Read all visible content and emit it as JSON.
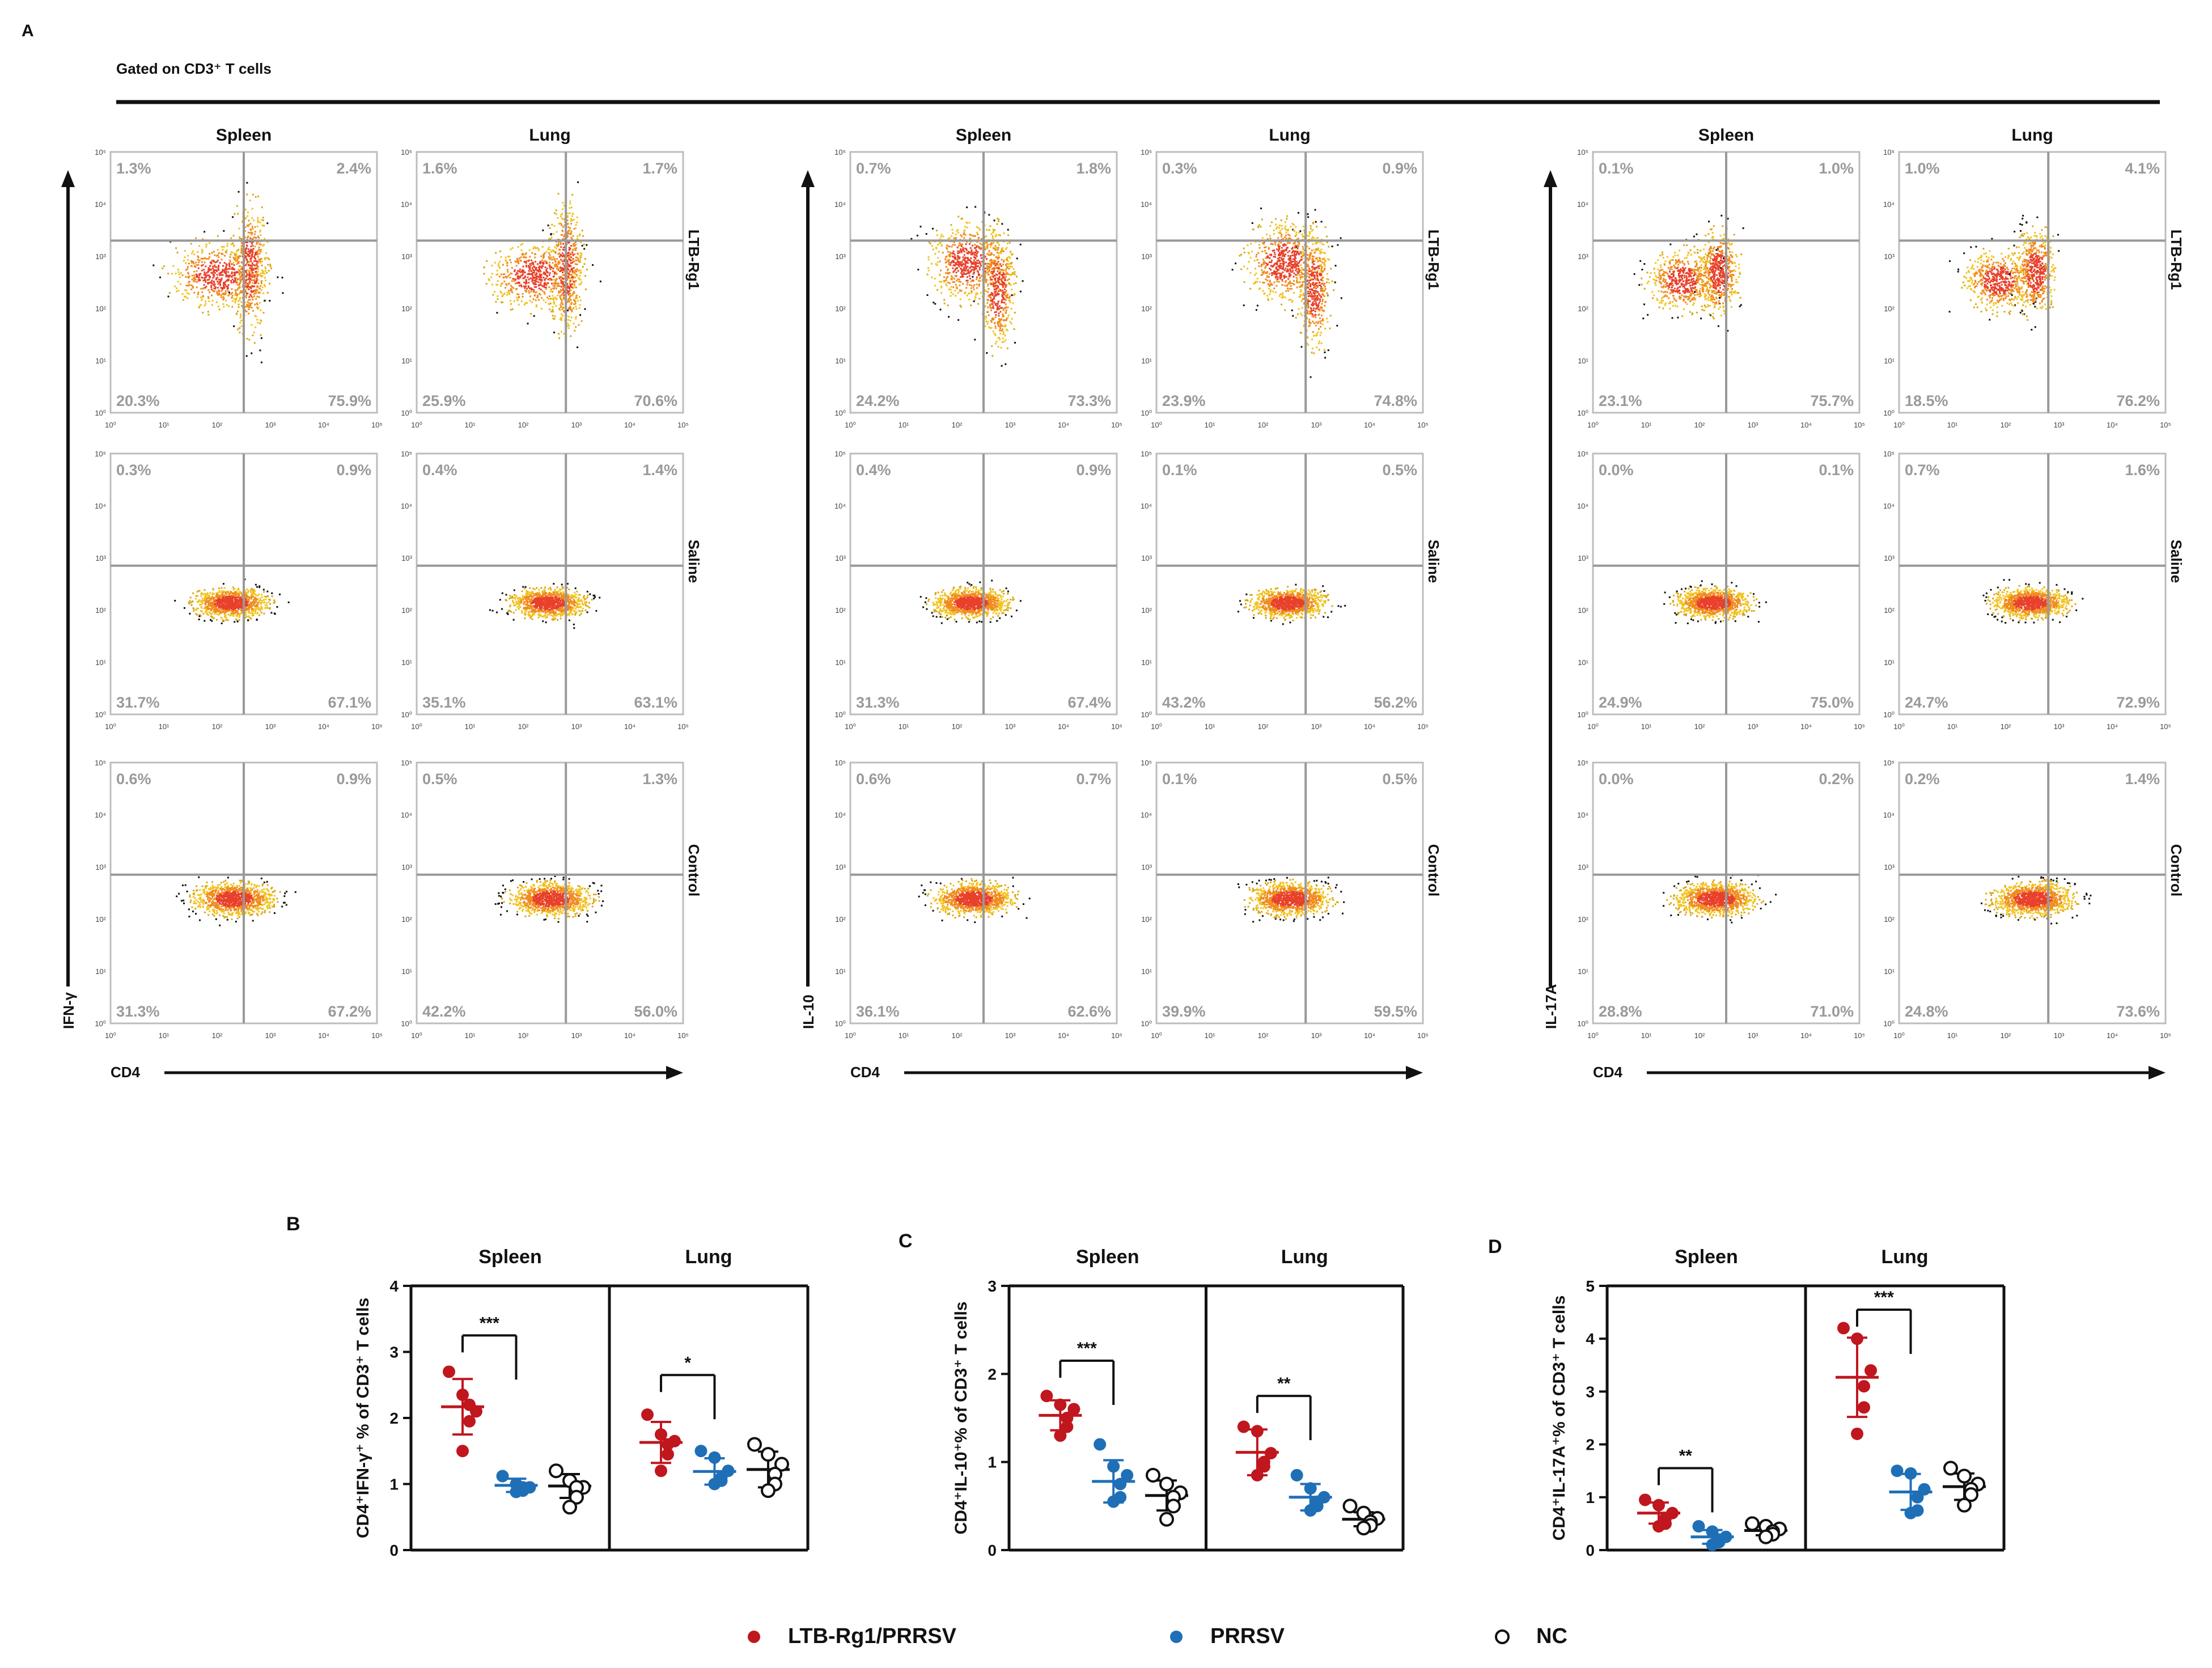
{
  "figure": {
    "panel_a_label": "A",
    "gated_label": "Gated on CD3⁺ T cells"
  },
  "flow": {
    "tissues": [
      "Spleen",
      "Lung"
    ],
    "groups": [
      "LTB-Rg1",
      "Saline",
      "Control"
    ],
    "x_axis_label": "CD4",
    "tick_labels": [
      "10⁰",
      "10¹",
      "10²",
      "10³",
      "10⁴",
      "10⁵"
    ],
    "panels": [
      {
        "marker": "IFN-γ",
        "quadrants": [
          [
            [
              "1.3%",
              "2.4%",
              "20.3%",
              "75.9%"
            ],
            [
              "1.6%",
              "1.7%",
              "25.9%",
              "70.6%"
            ]
          ],
          [
            [
              "0.3%",
              "0.9%",
              "31.7%",
              "67.1%"
            ],
            [
              "0.4%",
              "1.4%",
              "35.1%",
              "63.1%"
            ]
          ],
          [
            [
              "0.6%",
              "0.9%",
              "31.3%",
              "67.2%"
            ],
            [
              "0.5%",
              "1.3%",
              "42.2%",
              "56.0%"
            ]
          ]
        ]
      },
      {
        "marker": "IL-10",
        "quadrants": [
          [
            [
              "0.7%",
              "1.8%",
              "24.2%",
              "73.3%"
            ],
            [
              "0.3%",
              "0.9%",
              "23.9%",
              "74.8%"
            ]
          ],
          [
            [
              "0.4%",
              "0.9%",
              "31.3%",
              "67.4%"
            ],
            [
              "0.1%",
              "0.5%",
              "43.2%",
              "56.2%"
            ]
          ],
          [
            [
              "0.6%",
              "0.7%",
              "36.1%",
              "62.6%"
            ],
            [
              "0.1%",
              "0.5%",
              "39.9%",
              "59.5%"
            ]
          ]
        ]
      },
      {
        "marker": "IL-17A",
        "quadrants": [
          [
            [
              "0.1%",
              "1.0%",
              "23.1%",
              "75.7%"
            ],
            [
              "1.0%",
              "4.1%",
              "18.5%",
              "76.2%"
            ]
          ],
          [
            [
              "0.0%",
              "0.1%",
              "24.9%",
              "75.0%"
            ],
            [
              "0.7%",
              "1.6%",
              "24.7%",
              "72.9%"
            ]
          ],
          [
            [
              "0.0%",
              "0.2%",
              "28.8%",
              "71.0%"
            ],
            [
              "0.2%",
              "1.4%",
              "24.8%",
              "73.6%"
            ]
          ]
        ]
      }
    ]
  },
  "legend": [
    {
      "label": "LTB-Rg1/PRRSV",
      "color": "#c0161e",
      "fill": true
    },
    {
      "label": "PRRSV",
      "color": "#1f6fb7",
      "fill": true
    },
    {
      "label": "NC",
      "color": "#111111",
      "fill": false
    }
  ],
  "chart_data": [
    {
      "panel": "B",
      "type": "scatter",
      "ylabel": "CD4⁺IFN-γ⁺ % of CD3⁺ T cells",
      "ylim": [
        0,
        4
      ],
      "yticks": [
        "0",
        "1",
        "2",
        "3",
        "4"
      ],
      "facets": [
        "Spleen",
        "Lung"
      ],
      "groups": [
        "LTB-Rg1/PRRSV",
        "PRRSV",
        "NC"
      ],
      "data": {
        "Spleen": {
          "LTB-Rg1/PRRSV": {
            "values": [
              2.7,
              2.35,
              2.1,
              2.2,
              1.95,
              1.5
            ],
            "mean": 2.17,
            "sd": 0.42
          },
          "PRRSV": {
            "values": [
              1.12,
              1.0,
              0.95,
              0.95,
              0.9,
              0.88
            ],
            "mean": 0.98,
            "sd": 0.1
          },
          "NC": {
            "values": [
              1.2,
              1.05,
              0.95,
              0.95,
              0.8,
              0.65
            ],
            "mean": 0.97,
            "sd": 0.18
          }
        },
        "Lung": {
          "LTB-Rg1/PRRSV": {
            "values": [
              2.05,
              1.75,
              1.65,
              1.6,
              1.45,
              1.2
            ],
            "mean": 1.63,
            "sd": 0.31
          },
          "PRRSV": {
            "values": [
              1.5,
              1.4,
              1.2,
              1.1,
              1.05,
              1.0
            ],
            "mean": 1.19,
            "sd": 0.2
          },
          "NC": {
            "values": [
              1.6,
              1.45,
              1.3,
              1.15,
              1.0,
              0.9
            ],
            "mean": 1.22,
            "sd": 0.27
          }
        }
      },
      "significance": [
        {
          "facet": "Spleen",
          "from": "LTB-Rg1/PRRSV",
          "to": "PRRSV",
          "label": "***",
          "y": 3.25
        },
        {
          "facet": "Lung",
          "from": "LTB-Rg1/PRRSV",
          "to": "PRRSV",
          "label": "*",
          "y": 2.65
        }
      ]
    },
    {
      "panel": "C",
      "type": "scatter",
      "ylabel": "CD4⁺IL-10⁺% of CD3⁺ T cells",
      "ylim": [
        0,
        3
      ],
      "yticks": [
        "0",
        "1",
        "2",
        "3"
      ],
      "facets": [
        "Spleen",
        "Lung"
      ],
      "groups": [
        "LTB-Rg1/PRRSV",
        "PRRSV",
        "NC"
      ],
      "data": {
        "Spleen": {
          "LTB-Rg1/PRRSV": {
            "values": [
              1.75,
              1.65,
              1.6,
              1.5,
              1.4,
              1.3
            ],
            "mean": 1.53,
            "sd": 0.17
          },
          "PRRSV": {
            "values": [
              1.2,
              0.95,
              0.85,
              0.75,
              0.6,
              0.55
            ],
            "mean": 0.78,
            "sd": 0.24
          },
          "NC": {
            "values": [
              0.85,
              0.75,
              0.65,
              0.6,
              0.5,
              0.35
            ],
            "mean": 0.62,
            "sd": 0.17
          }
        },
        "Lung": {
          "LTB-Rg1/PRRSV": {
            "values": [
              1.4,
              1.35,
              1.1,
              1.0,
              0.95,
              0.85
            ],
            "mean": 1.11,
            "sd": 0.26
          },
          "PRRSV": {
            "values": [
              0.85,
              0.7,
              0.6,
              0.55,
              0.5,
              0.45
            ],
            "mean": 0.6,
            "sd": 0.15
          },
          "NC": {
            "values": [
              0.5,
              0.42,
              0.36,
              0.32,
              0.28,
              0.25
            ],
            "mean": 0.35,
            "sd": 0.08
          }
        }
      },
      "significance": [
        {
          "facet": "Spleen",
          "from": "LTB-Rg1/PRRSV",
          "to": "PRRSV",
          "label": "***",
          "y": 2.15
        },
        {
          "facet": "Lung",
          "from": "LTB-Rg1/PRRSV",
          "to": "PRRSV",
          "label": "**",
          "y": 1.75
        }
      ]
    },
    {
      "panel": "D",
      "type": "scatter",
      "ylabel": "CD4⁺IL-17A⁺% of CD3⁺ T cells",
      "ylim": [
        0,
        5
      ],
      "yticks": [
        "0",
        "1",
        "2",
        "3",
        "4",
        "5"
      ],
      "facets": [
        "Spleen",
        "Lung"
      ],
      "groups": [
        "LTB-Rg1/PRRSV",
        "PRRSV",
        "NC"
      ],
      "data": {
        "Spleen": {
          "LTB-Rg1/PRRSV": {
            "values": [
              0.95,
              0.85,
              0.7,
              0.6,
              0.5,
              0.45
            ],
            "mean": 0.7,
            "sd": 0.2
          },
          "PRRSV": {
            "values": [
              0.45,
              0.35,
              0.25,
              0.2,
              0.15,
              0.1
            ],
            "mean": 0.25,
            "sd": 0.13
          },
          "NC": {
            "values": [
              0.5,
              0.45,
              0.4,
              0.35,
              0.3,
              0.25
            ],
            "mean": 0.37,
            "sd": 0.09
          }
        },
        "Lung": {
          "LTB-Rg1/PRRSV": {
            "values": [
              4.2,
              4.0,
              3.4,
              3.1,
              2.7,
              2.2
            ],
            "mean": 3.27,
            "sd": 0.75
          },
          "PRRSV": {
            "values": [
              1.5,
              1.45,
              1.15,
              1.0,
              0.75,
              0.7
            ],
            "mean": 1.1,
            "sd": 0.34
          },
          "NC": {
            "values": [
              1.55,
              1.4,
              1.25,
              1.15,
              1.05,
              0.85
            ],
            "mean": 1.2,
            "sd": 0.25
          }
        }
      },
      "significance": [
        {
          "facet": "Spleen",
          "from": "LTB-Rg1/PRRSV",
          "to": "PRRSV",
          "label": "**",
          "y": 1.55
        },
        {
          "facet": "Lung",
          "from": "LTB-Rg1/PRRSV",
          "to": "PRRSV",
          "label": "***",
          "y": 4.55
        }
      ]
    }
  ],
  "panel_labels": [
    "B",
    "C",
    "D"
  ]
}
